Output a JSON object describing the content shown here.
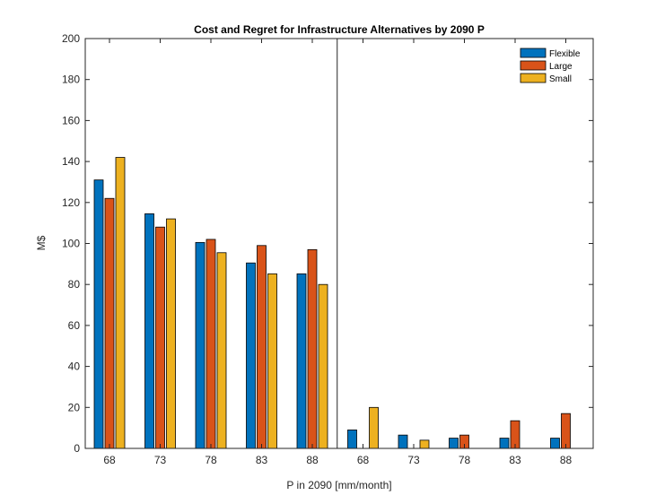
{
  "chart_data": {
    "type": "bar",
    "title": "Cost and Regret for Infrastructure Alternatives by 2090 P",
    "xlabel": "P in 2090 [mm/month]",
    "ylabel": "M$",
    "ylim": [
      0,
      200
    ],
    "yticks": [
      0,
      20,
      40,
      60,
      80,
      100,
      120,
      140,
      160,
      180,
      200
    ],
    "categories": [
      "68",
      "73",
      "78",
      "83",
      "88",
      "68",
      "73",
      "78",
      "83",
      "88"
    ],
    "divider_after_index": 4,
    "grid": false,
    "legend_position": "top-right",
    "series": [
      {
        "name": "Flexible",
        "color": "#0072BD",
        "values": [
          131,
          114.5,
          100.5,
          90.5,
          85.2,
          9,
          6.5,
          5,
          5,
          5
        ]
      },
      {
        "name": "Large",
        "color": "#D95319",
        "values": [
          122,
          108,
          102,
          99,
          97,
          0,
          0,
          6.5,
          13.5,
          17
        ]
      },
      {
        "name": "Small",
        "color": "#EDB120",
        "values": [
          142,
          112,
          95.5,
          85.2,
          80,
          20,
          4,
          0,
          0,
          0
        ]
      }
    ]
  }
}
